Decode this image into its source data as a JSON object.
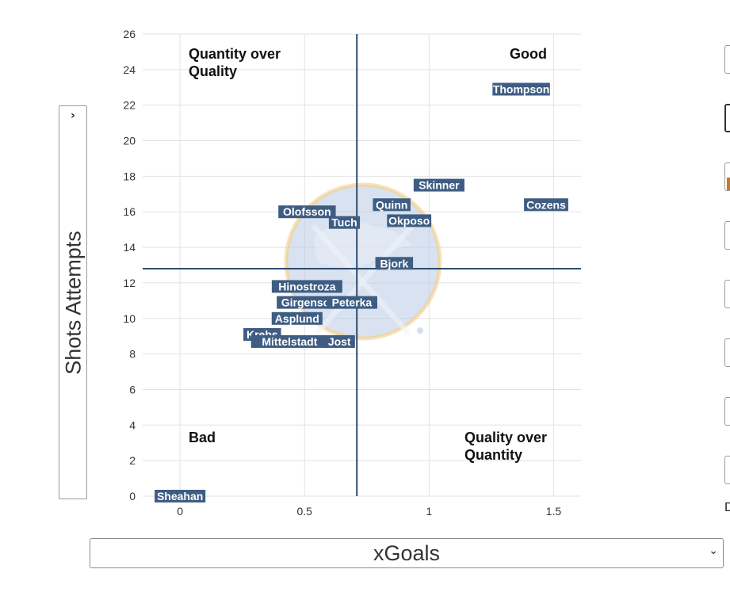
{
  "chart_data": {
    "type": "scatter",
    "xlabel": "xGoals",
    "ylabel": "Shots Attempts",
    "xlim": [
      -0.15,
      1.61
    ],
    "ylim": [
      0,
      26
    ],
    "x_ticks": [
      0,
      0.5,
      1,
      1.5
    ],
    "x_tick_labels": [
      "0",
      "0.5",
      "1",
      "1.5"
    ],
    "y_ticks": [
      0,
      2,
      4,
      6,
      8,
      10,
      12,
      14,
      16,
      18,
      20,
      22,
      24,
      26
    ],
    "grid": true,
    "reference_lines": {
      "x": 0.71,
      "y": 12.8
    },
    "quadrant_labels": {
      "top_left": [
        "Quantity over",
        "Quality"
      ],
      "top_right": [
        "Good"
      ],
      "bottom_left": [
        "Bad"
      ],
      "bottom_right": [
        "Quality over",
        "Quantity"
      ]
    },
    "points": [
      {
        "label": "Thompson",
        "x": 1.37,
        "y": 22.9
      },
      {
        "label": "Skinner",
        "x": 1.04,
        "y": 17.5
      },
      {
        "label": "Cozens",
        "x": 1.47,
        "y": 16.4
      },
      {
        "label": "Quinn",
        "x": 0.85,
        "y": 16.4
      },
      {
        "label": "Olofsson",
        "x": 0.51,
        "y": 16.0
      },
      {
        "label": "Okposo",
        "x": 0.92,
        "y": 15.5
      },
      {
        "label": "Tuch",
        "x": 0.66,
        "y": 15.4
      },
      {
        "label": "Bjork",
        "x": 0.86,
        "y": 13.1
      },
      {
        "label": "Hinostroza",
        "x": 0.51,
        "y": 11.8
      },
      {
        "label": "Girgensons",
        "x": 0.53,
        "y": 10.9
      },
      {
        "label": "Peterka",
        "x": 0.69,
        "y": 10.9
      },
      {
        "label": "Asplund",
        "x": 0.47,
        "y": 10.0
      },
      {
        "label": "Krebs",
        "x": 0.33,
        "y": 9.1
      },
      {
        "label": "Mittelstadt",
        "x": 0.44,
        "y": 8.7
      },
      {
        "label": "Jost",
        "x": 0.64,
        "y": 8.7
      },
      {
        "label": "Sheahan",
        "x": 0.0,
        "y": 0.0
      }
    ]
  },
  "controls": {
    "y_axis_select_value": "Shots Attempts",
    "x_axis_select_value": "xGoals",
    "right_panel_letter": "D"
  },
  "colors": {
    "label_bg": "#3f5d83",
    "label_text": "#ffffff",
    "reference_line": "#2e4a6e",
    "grid": "#e2e2e2",
    "logo_circle": "#b9cbe4",
    "logo_ring": "#f5cf85"
  },
  "icons": [
    "chevron-right-icon",
    "chevron-down-icon",
    "team-logo-watermark"
  ]
}
